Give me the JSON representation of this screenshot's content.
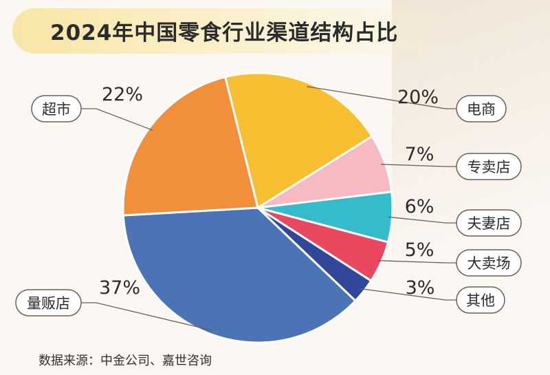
{
  "title": "2024年中国零食行业渠道结构占比",
  "source": "数据来源：中金公司、嘉世咨询",
  "chart_data": {
    "type": "pie",
    "slices": [
      {
        "name": "电商",
        "value": 20,
        "label": "20%",
        "color": "#f9bf33"
      },
      {
        "name": "专卖店",
        "value": 7,
        "label": "7%",
        "color": "#f7b9c2"
      },
      {
        "name": "夫妻店",
        "value": 6,
        "label": "6%",
        "color": "#34bccb"
      },
      {
        "name": "大卖场",
        "value": 5,
        "label": "5%",
        "color": "#e9485f"
      },
      {
        "name": "其他",
        "value": 3,
        "label": "3%",
        "color": "#33479a"
      },
      {
        "name": "量贩店",
        "value": 37,
        "label": "37%",
        "color": "#4a74b6"
      },
      {
        "name": "超市",
        "value": 22,
        "label": "22%",
        "color": "#f28f3b"
      }
    ]
  }
}
